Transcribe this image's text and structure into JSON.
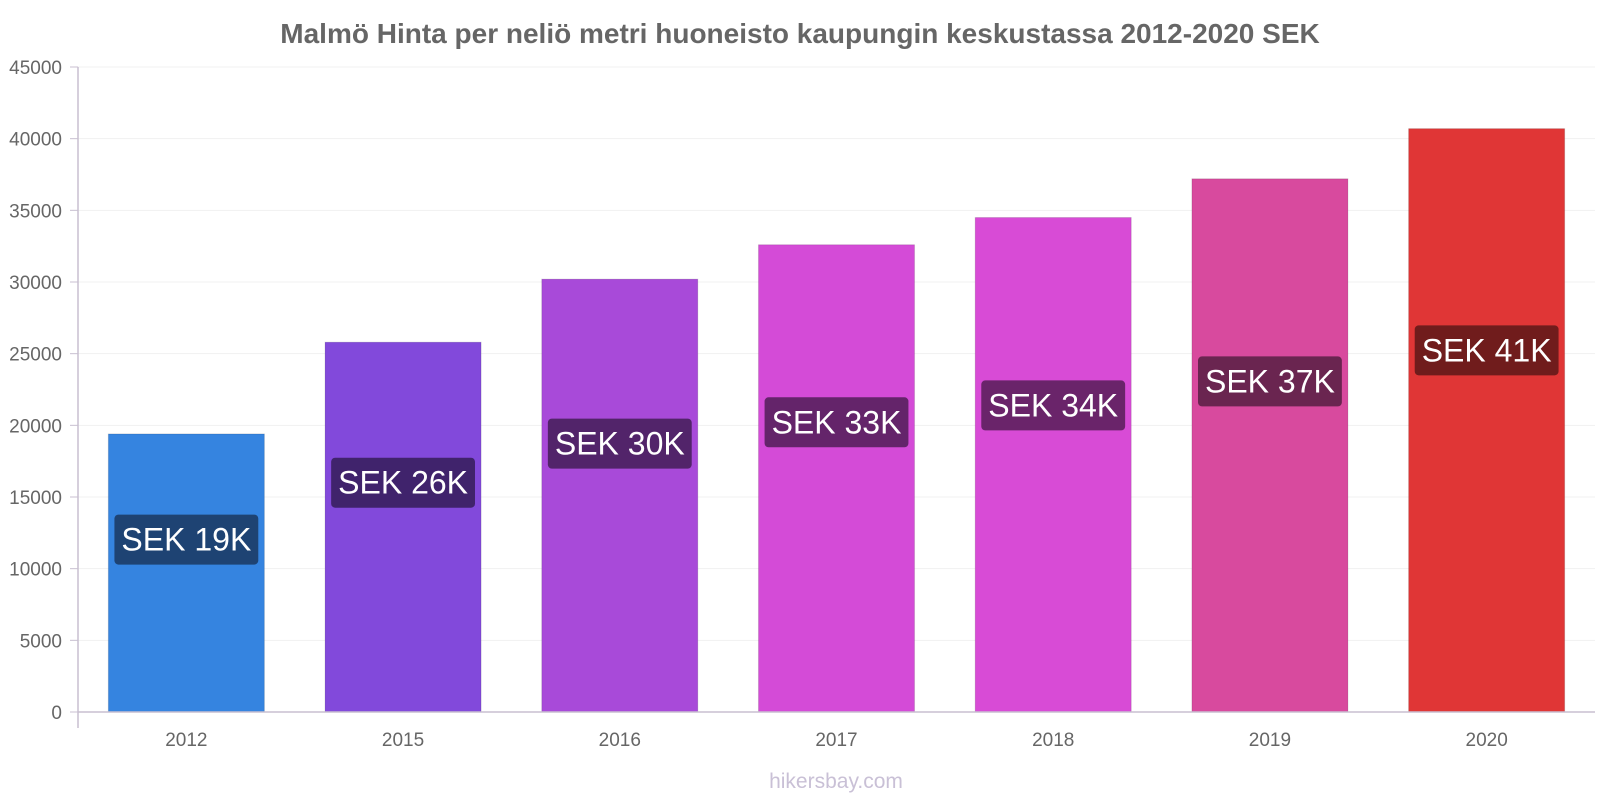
{
  "chart_data": {
    "type": "bar",
    "title": "Malmö Hinta per neliö metri huoneisto kaupungin keskustassa 2012-2020 SEK",
    "xlabel": "",
    "ylabel": "",
    "categories": [
      "2012",
      "2015",
      "2016",
      "2017",
      "2018",
      "2019",
      "2020"
    ],
    "values": [
      19400,
      25800,
      30200,
      32600,
      34500,
      37200,
      40700
    ],
    "data_labels": [
      "SEK 19K",
      "SEK 26K",
      "SEK 30K",
      "SEK 33K",
      "SEK 34K",
      "SEK 37K",
      "SEK 41K"
    ],
    "bar_colors": [
      "#3584e0",
      "#8249db",
      "#a84ad9",
      "#d44bd7",
      "#d84bd6",
      "#d84a9e",
      "#e03636"
    ],
    "label_bg_colors": [
      "#1e4373",
      "#40236c",
      "#52246a",
      "#64246a",
      "#6a246a",
      "#6a2550",
      "#701c1c"
    ],
    "ylim": [
      0,
      45000
    ],
    "yticks": [
      0,
      5000,
      10000,
      15000,
      20000,
      25000,
      30000,
      35000,
      40000,
      45000
    ],
    "grid": true,
    "legend": "none"
  },
  "footer": "hikersbay.com"
}
